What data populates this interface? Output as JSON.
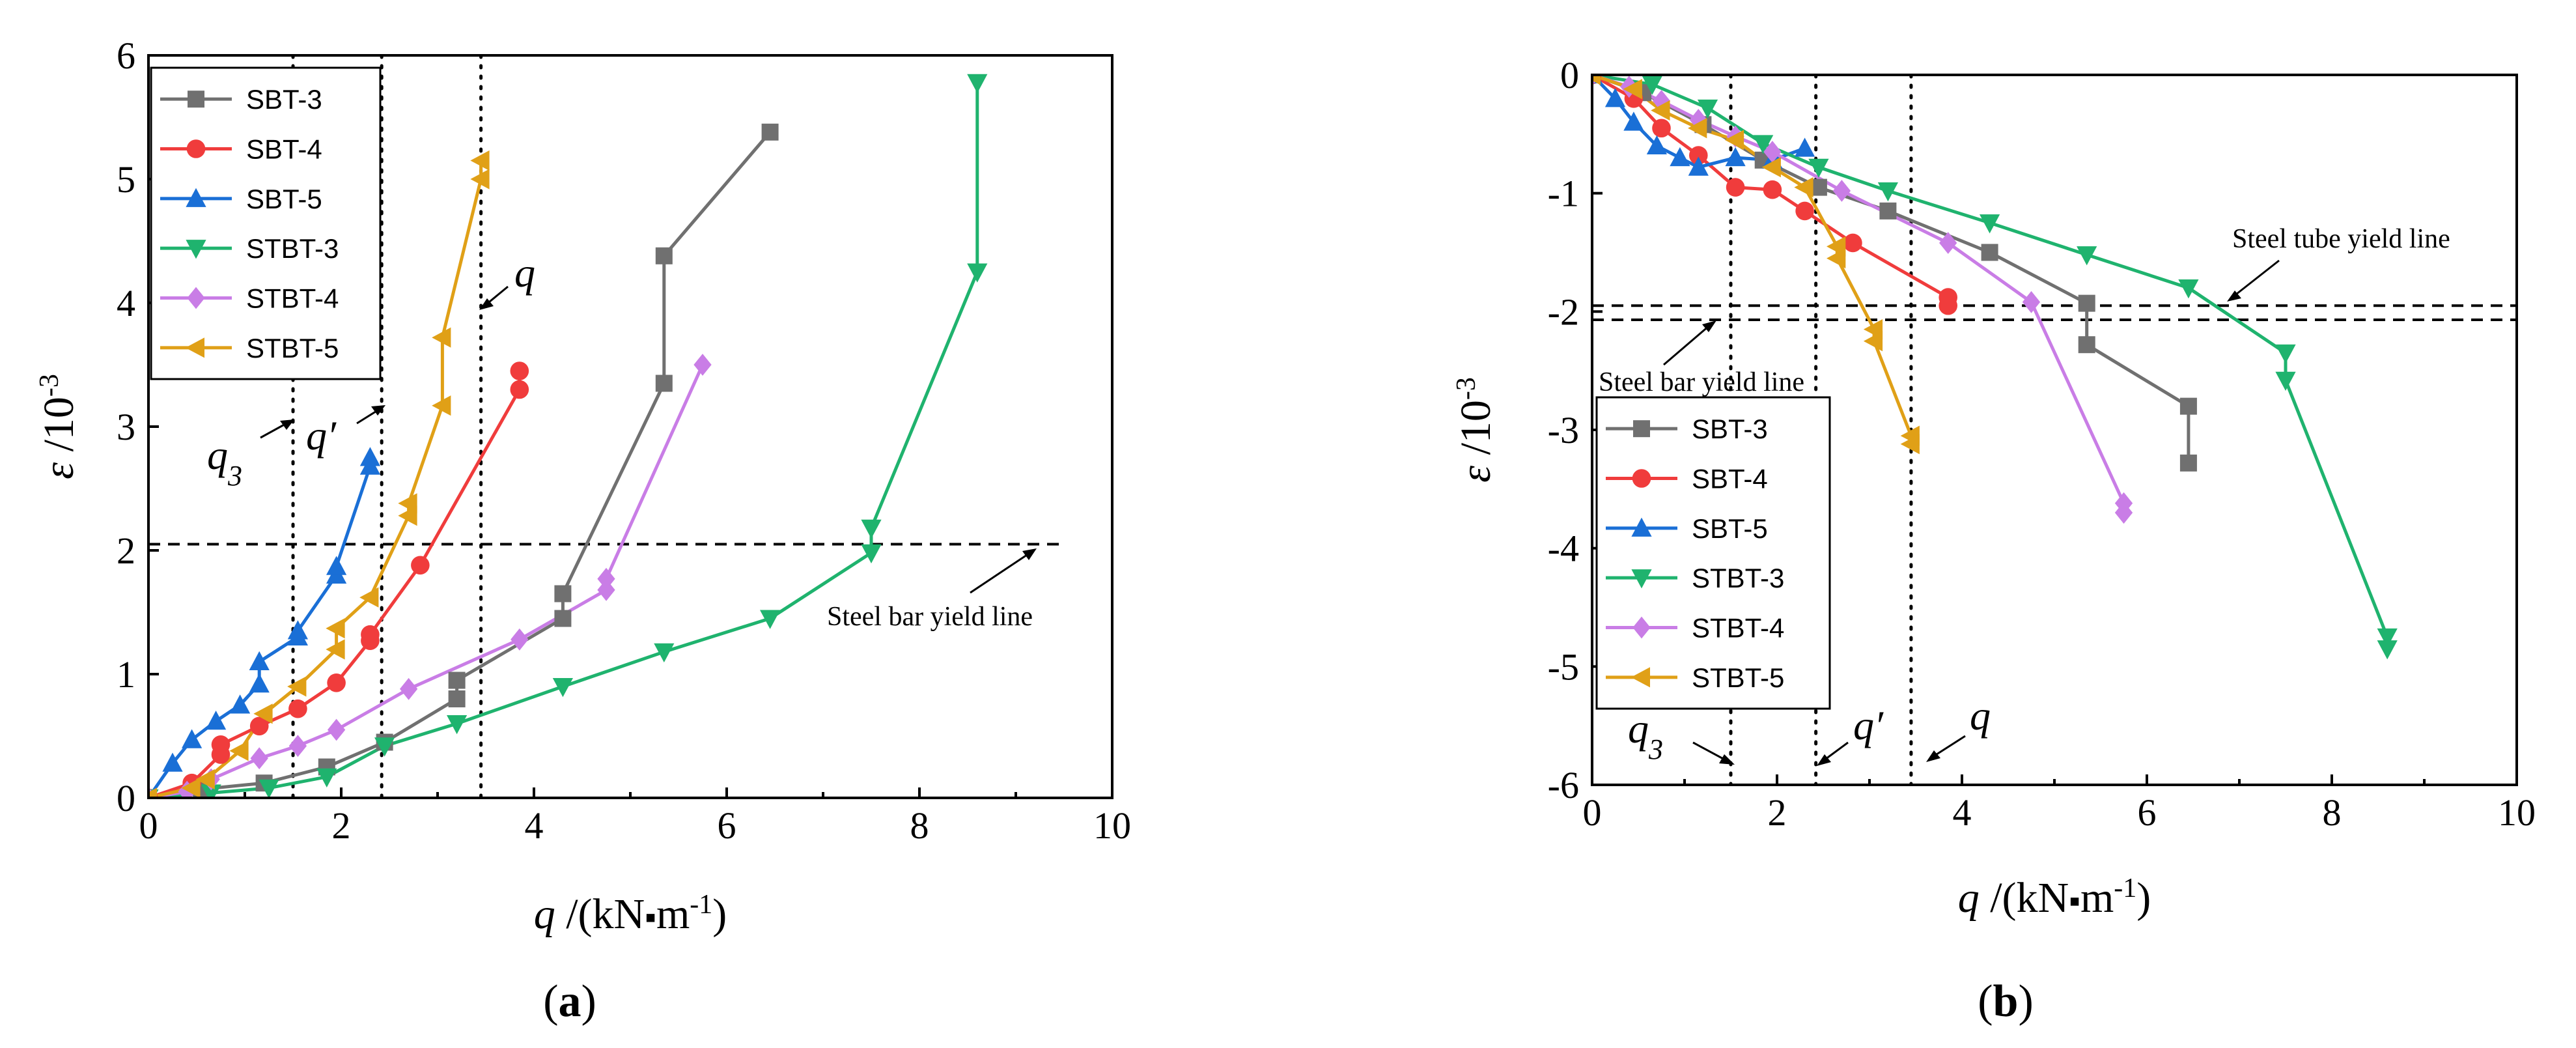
{
  "chart_data": [
    {
      "type": "line",
      "panel_label": "(a)",
      "xlabel": "q /(kN▪m⁻¹)",
      "ylabel": "ε /10⁻³",
      "xlim": [
        0,
        10
      ],
      "ylim": [
        0,
        6
      ],
      "xticks": [
        "0",
        "2",
        "4",
        "6",
        "8",
        "10"
      ],
      "yticks": [
        "0",
        "1",
        "2",
        "3",
        "4",
        "5",
        "6"
      ],
      "legend_position": "top-left",
      "vertical_lines": [
        {
          "x": 1.5,
          "label": "q3"
        },
        {
          "x": 2.42,
          "label": "q′"
        },
        {
          "x": 3.45,
          "label": "q"
        }
      ],
      "yield_lines": [
        {
          "y": 2.05,
          "label": "Steel bar yield line"
        }
      ],
      "series": [
        {
          "name": "SBT-3",
          "color": "#707070",
          "marker": "square",
          "x": [
            0,
            0.55,
            1.2,
            1.85,
            2.45,
            3.2,
            3.2,
            4.3,
            4.3,
            5.35,
            5.35,
            6.45
          ],
          "y": [
            0,
            0.07,
            0.12,
            0.25,
            0.45,
            0.8,
            0.95,
            1.45,
            1.65,
            3.35,
            4.38,
            5.38
          ]
        },
        {
          "name": "SBT-4",
          "color": "#f03c3c",
          "marker": "circle",
          "x": [
            0,
            0.45,
            0.75,
            0.75,
            1.15,
            1.55,
            1.95,
            2.3,
            2.3,
            2.82,
            3.85,
            3.85
          ],
          "y": [
            0,
            0.12,
            0.35,
            0.43,
            0.58,
            0.72,
            0.93,
            1.27,
            1.32,
            1.88,
            3.3,
            3.45
          ]
        },
        {
          "name": "SBT-5",
          "color": "#1a6fd6",
          "marker": "triangle-up",
          "x": [
            0,
            0.25,
            0.45,
            0.7,
            0.95,
            1.15,
            1.15,
            1.55,
            1.55,
            1.95,
            1.95,
            2.3,
            2.3
          ],
          "y": [
            0,
            0.28,
            0.47,
            0.62,
            0.75,
            0.92,
            1.1,
            1.3,
            1.35,
            1.8,
            1.87,
            2.68,
            2.75
          ]
        },
        {
          "name": "STBT-3",
          "color": "#1fb36e",
          "marker": "triangle-down",
          "x": [
            0,
            0.65,
            1.25,
            1.85,
            2.45,
            3.2,
            4.3,
            5.35,
            6.45,
            7.5,
            7.5,
            8.6,
            8.6
          ],
          "y": [
            0,
            0.04,
            0.08,
            0.17,
            0.42,
            0.6,
            0.9,
            1.18,
            1.45,
            1.98,
            2.18,
            4.25,
            5.78
          ]
        },
        {
          "name": "STBT-4",
          "color": "#c97de6",
          "marker": "diamond",
          "x": [
            0,
            0.4,
            0.65,
            1.15,
            1.55,
            1.95,
            2.7,
            3.85,
            4.75,
            4.75,
            5.75
          ],
          "y": [
            0,
            0.05,
            0.15,
            0.32,
            0.42,
            0.55,
            0.88,
            1.28,
            1.68,
            1.77,
            3.5
          ]
        },
        {
          "name": "STBT-5",
          "color": "#e0a017",
          "marker": "triangle-left",
          "x": [
            0,
            0.45,
            0.6,
            0.95,
            1.2,
            1.55,
            1.95,
            1.95,
            2.3,
            2.7,
            2.7,
            3.05,
            3.05,
            3.45,
            3.45
          ],
          "y": [
            0,
            0.08,
            0.15,
            0.38,
            0.68,
            0.9,
            1.2,
            1.37,
            1.62,
            2.28,
            2.38,
            3.17,
            3.72,
            5.0,
            5.15
          ]
        }
      ]
    },
    {
      "type": "line",
      "panel_label": "(b)",
      "xlabel": "q /(kN▪m⁻¹)",
      "ylabel": "ε /10⁻³",
      "xlim": [
        0,
        10
      ],
      "ylim": [
        -6,
        0
      ],
      "xticks": [
        "0",
        "2",
        "4",
        "6",
        "8",
        "10"
      ],
      "yticks": [
        "0",
        "-1",
        "-2",
        "-3",
        "-4",
        "-5",
        "-6"
      ],
      "legend_position": "bottom-left",
      "vertical_lines": [
        {
          "x": 1.5,
          "label": "q3"
        },
        {
          "x": 2.42,
          "label": "q′"
        },
        {
          "x": 3.45,
          "label": "q"
        }
      ],
      "yield_lines": [
        {
          "y": -1.95,
          "label": "Steel tube yield line"
        },
        {
          "y": -2.07,
          "label": "Steel bar yield line"
        }
      ],
      "series": [
        {
          "name": "SBT-3",
          "color": "#707070",
          "marker": "square",
          "x": [
            0,
            0.55,
            1.2,
            1.85,
            2.45,
            3.2,
            4.3,
            5.35,
            5.35,
            6.45,
            6.45
          ],
          "y": [
            0,
            -0.15,
            -0.42,
            -0.72,
            -0.95,
            -1.15,
            -1.5,
            -1.93,
            -2.28,
            -2.8,
            -3.28
          ]
        },
        {
          "name": "SBT-4",
          "color": "#f03c3c",
          "marker": "circle",
          "x": [
            0,
            0.45,
            0.75,
            1.15,
            1.55,
            1.95,
            2.3,
            2.82,
            3.85,
            3.85
          ],
          "y": [
            0,
            -0.2,
            -0.45,
            -0.68,
            -0.95,
            -0.97,
            -1.15,
            -1.42,
            -1.88,
            -1.95
          ]
        },
        {
          "name": "SBT-5",
          "color": "#1a6fd6",
          "marker": "triangle-up",
          "x": [
            0,
            0.25,
            0.45,
            0.7,
            0.95,
            1.15,
            1.55,
            1.95,
            2.3
          ],
          "y": [
            0,
            -0.2,
            -0.4,
            -0.6,
            -0.7,
            -0.78,
            -0.7,
            -0.72,
            -0.62
          ]
        },
        {
          "name": "STBT-3",
          "color": "#1fb36e",
          "marker": "triangle-down",
          "x": [
            0,
            0.65,
            1.25,
            1.85,
            2.45,
            3.2,
            4.3,
            5.35,
            6.45,
            7.5,
            7.5,
            8.6,
            8.6
          ],
          "y": [
            0,
            -0.08,
            -0.28,
            -0.58,
            -0.78,
            -0.98,
            -1.25,
            -1.52,
            -1.8,
            -2.35,
            -2.58,
            -4.75,
            -4.85
          ]
        },
        {
          "name": "STBT-4",
          "color": "#c97de6",
          "marker": "diamond",
          "x": [
            0,
            0.4,
            0.75,
            1.15,
            1.55,
            1.95,
            2.7,
            3.85,
            4.75,
            5.75,
            5.75
          ],
          "y": [
            0,
            -0.1,
            -0.22,
            -0.38,
            -0.52,
            -0.65,
            -0.98,
            -1.42,
            -1.92,
            -3.62,
            -3.7
          ]
        },
        {
          "name": "STBT-5",
          "color": "#e0a017",
          "marker": "triangle-left",
          "x": [
            0,
            0.45,
            0.75,
            1.15,
            1.55,
            1.95,
            2.3,
            2.65,
            2.65,
            3.05,
            3.05,
            3.45,
            3.45
          ],
          "y": [
            0,
            -0.12,
            -0.3,
            -0.45,
            -0.55,
            -0.78,
            -0.95,
            -1.45,
            -1.55,
            -2.15,
            -2.25,
            -3.05,
            -3.12
          ]
        }
      ]
    }
  ]
}
